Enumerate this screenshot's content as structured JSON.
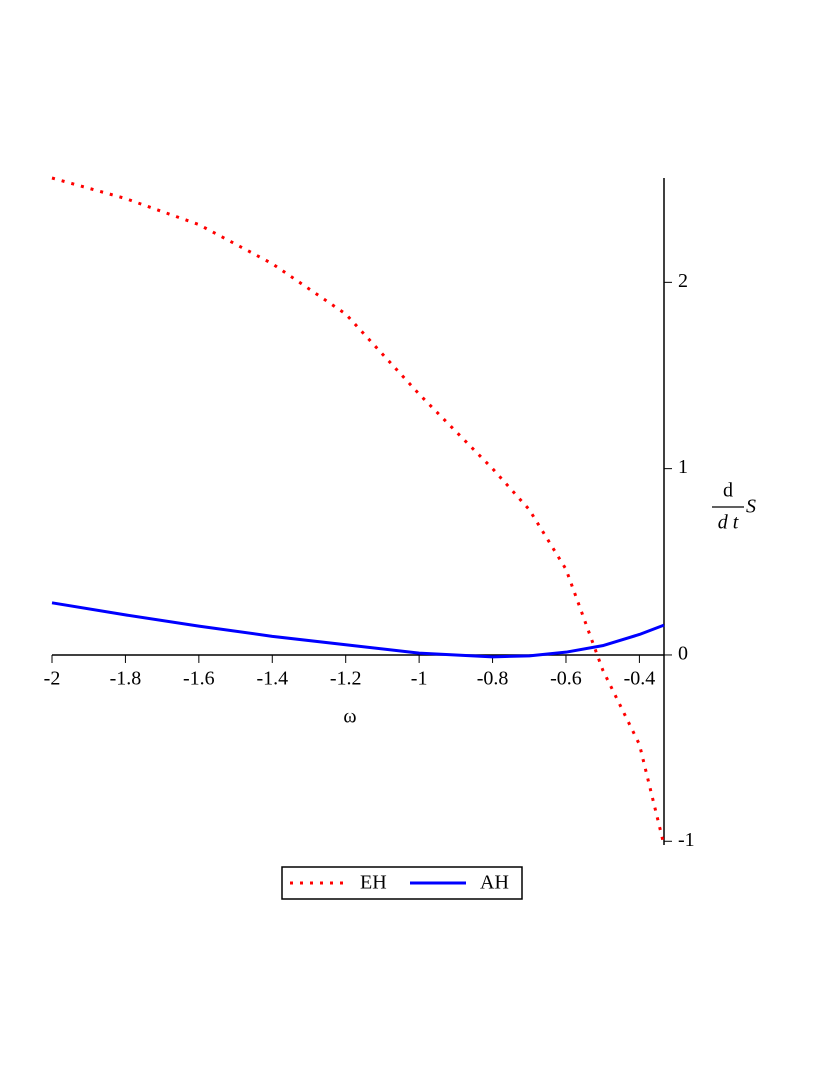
{
  "chart_data": {
    "type": "line",
    "xlabel": "ω",
    "ylabel": {
      "numerator": "d",
      "denominator": "d t",
      "variable": "S"
    },
    "x": [
      -2,
      -1.8,
      -1.6,
      -1.4,
      -1.2,
      -1,
      -0.8,
      -0.7,
      -0.6,
      -0.5,
      -0.4,
      -0.333
    ],
    "series": [
      {
        "name": "EH",
        "color": "#ff0000",
        "style": "dotted",
        "values": [
          2.56,
          2.45,
          2.31,
          2.1,
          1.83,
          1.4,
          1.0,
          0.78,
          0.46,
          -0.08,
          -0.48,
          -1.02
        ]
      },
      {
        "name": "AH",
        "color": "#0000ff",
        "style": "solid",
        "values": [
          0.28,
          0.215,
          0.155,
          0.1,
          0.055,
          0.01,
          -0.01,
          -0.005,
          0.015,
          0.05,
          0.11,
          0.16
        ]
      }
    ],
    "xlim": [
      -2,
      -0.333
    ],
    "ylim": [
      -1.02,
      2.56
    ],
    "xticks": [
      -2,
      -1.8,
      -1.6,
      -1.4,
      -1.2,
      -1,
      -0.8,
      -0.6,
      -0.4
    ],
    "yticks": [
      -1,
      0,
      1,
      2
    ],
    "legend": "bottom"
  }
}
